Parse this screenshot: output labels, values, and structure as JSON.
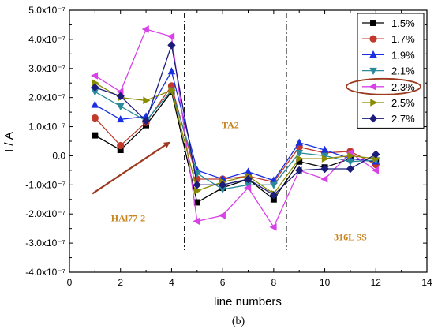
{
  "caption": "(b)",
  "colors": {
    "arrow": "#9b3a1e",
    "highlight_ellipse": "#9b3a1e",
    "region_label": "#c8841e"
  },
  "chart_data": {
    "type": "line",
    "xlabel": "line numbers",
    "ylabel": "I / A",
    "xlim": [
      0,
      14
    ],
    "ylim": [
      -4e-07,
      5e-07
    ],
    "x_ticks": [
      {
        "value": 0,
        "label": "0"
      },
      {
        "value": 2,
        "label": "2"
      },
      {
        "value": 4,
        "label": "4"
      },
      {
        "value": 6,
        "label": "6"
      },
      {
        "value": 8,
        "label": "8"
      },
      {
        "value": 10,
        "label": "10"
      },
      {
        "value": 12,
        "label": "12"
      },
      {
        "value": 14,
        "label": "14"
      }
    ],
    "y_ticks": [
      {
        "value": 5e-07,
        "label": "5.0x10⁻⁷"
      },
      {
        "value": 4e-07,
        "label": "4.0x10⁻⁷"
      },
      {
        "value": 3e-07,
        "label": "3.0x10⁻⁷"
      },
      {
        "value": 2e-07,
        "label": "2.0x10⁻⁷"
      },
      {
        "value": 1e-07,
        "label": "1.0x10⁻⁷"
      },
      {
        "value": 0.0,
        "label": "0.0"
      },
      {
        "value": -1e-07,
        "label": "-1.0x10⁻⁷"
      },
      {
        "value": -2e-07,
        "label": "-2.0x10⁻⁷"
      },
      {
        "value": -3e-07,
        "label": "-3.0x10⁻⁷"
      },
      {
        "value": -4e-07,
        "label": "-4.0x10⁻⁷"
      }
    ],
    "x": [
      1,
      2,
      3,
      4,
      5,
      6,
      7,
      8,
      9,
      10,
      11,
      12
    ],
    "series": [
      {
        "name": "1.5%",
        "color": "#000000",
        "marker": "square",
        "values": [
          7e-08,
          2e-08,
          1.05e-07,
          2.2e-07,
          -1.6e-07,
          -1.1e-07,
          -8e-08,
          -1.5e-07,
          -2e-08,
          -4e-08,
          -1e-08,
          -2e-08
        ]
      },
      {
        "name": "1.7%",
        "color": "#c0392b",
        "marker": "circle",
        "values": [
          1.3e-07,
          3.5e-08,
          1.15e-07,
          2.4e-07,
          -8e-08,
          -8e-08,
          -7e-08,
          -9e-08,
          3e-08,
          1e-08,
          1.5e-08,
          -3e-08
        ]
      },
      {
        "name": "1.9%",
        "color": "#1a2fe0",
        "marker": "triangle-up",
        "values": [
          1.75e-07,
          1.25e-07,
          1.35e-07,
          2.9e-07,
          -5e-08,
          -8e-08,
          -5.5e-08,
          -8.5e-08,
          4.5e-08,
          2e-08,
          -1e-08,
          -2e-08
        ]
      },
      {
        "name": "2.1%",
        "color": "#2a8a9a",
        "marker": "triangle-down",
        "values": [
          2.2e-07,
          1.7e-07,
          1.2e-07,
          2.25e-07,
          -6e-08,
          -1.15e-07,
          -1e-07,
          -1e-07,
          1e-08,
          0.0,
          -2e-08,
          -1.5e-08
        ]
      },
      {
        "name": "2.3%",
        "color": "#d742e6",
        "marker": "triangle-left",
        "values": [
          2.75e-07,
          2.2e-07,
          4.35e-07,
          4.1e-07,
          -2.25e-07,
          -2.05e-07,
          -1.1e-07,
          -2.45e-07,
          -5e-08,
          -8e-08,
          1e-08,
          -5e-08
        ]
      },
      {
        "name": "2.5%",
        "color": "#8b8b00",
        "marker": "triangle-right",
        "values": [
          2.5e-07,
          2e-07,
          1.9e-07,
          2.25e-07,
          -1.2e-07,
          -9e-08,
          -7e-08,
          -1.3e-07,
          -1e-08,
          -1e-08,
          0.0,
          -1e-08
        ]
      },
      {
        "name": "2.7%",
        "color": "#1c1c7a",
        "marker": "diamond",
        "values": [
          2.35e-07,
          2.05e-07,
          1.2e-07,
          3.8e-07,
          -1e-07,
          -1e-07,
          -8e-08,
          -1.35e-07,
          -5e-08,
          -4.5e-08,
          -4.5e-08,
          5e-09
        ]
      }
    ],
    "vertical_dividers": [
      4.5,
      8.5
    ],
    "region_labels": [
      {
        "text": "HAl77-2",
        "x": 2.3,
        "y": -2.25e-07
      },
      {
        "text": "TA2",
        "x": 6.3,
        "y": 9.5e-08
      },
      {
        "text": "316L SS",
        "x": 11.0,
        "y": -2.9e-07
      }
    ],
    "arrow": {
      "from": [
        0.9,
        -1.3e-07
      ],
      "to": [
        3.9,
        4.5e-08
      ]
    },
    "legend": {
      "placement": "top-right",
      "highlighted": "2.3%"
    },
    "grid": false
  }
}
